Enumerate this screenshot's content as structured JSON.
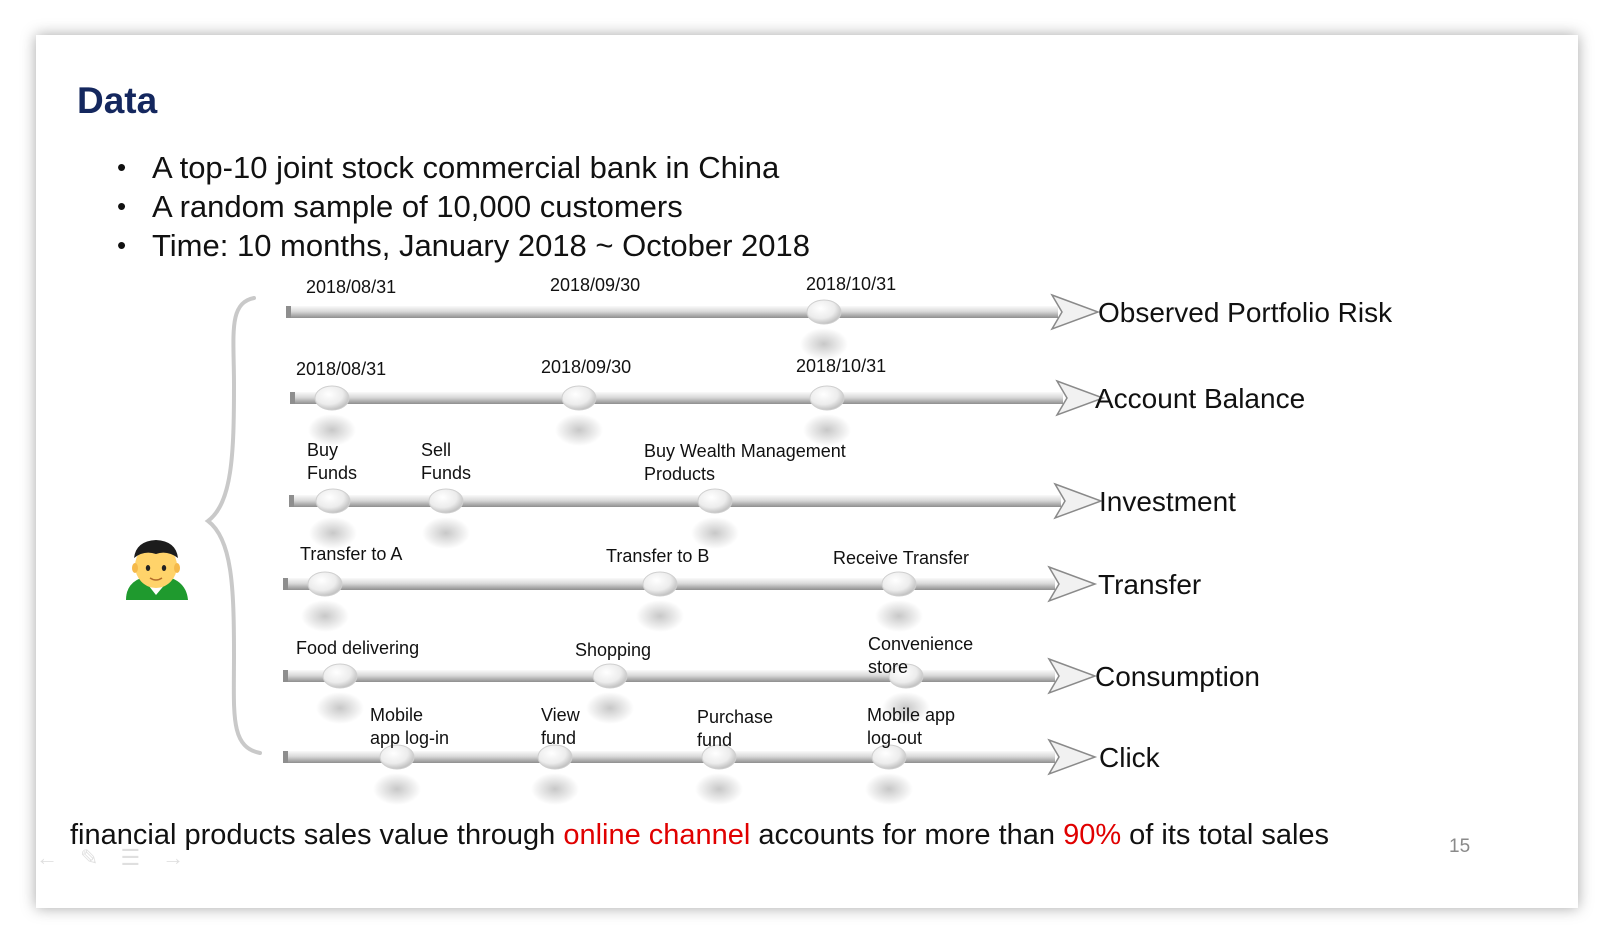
{
  "slide": {
    "title": "Data",
    "bullets": [
      "A top-10 joint stock commercial bank in China",
      "A random sample of 10,000 customers",
      "Time: 10 months, January 2018 ~ October 2018"
    ],
    "footer": {
      "part1": "financial products sales value through ",
      "highlight1": "online channel",
      "part2": " accounts for more than ",
      "highlight2": "90%",
      "part3": " of its total sales"
    },
    "page_number": "15"
  },
  "diagram": {
    "customer_icon": "person-icon",
    "timelines": [
      {
        "label": "Observed Portfolio Risk",
        "events": [
          {
            "text": "2018/08/31"
          },
          {
            "text": "2018/09/30"
          },
          {
            "text": "2018/10/31"
          }
        ]
      },
      {
        "label": "Account Balance",
        "events": [
          {
            "text": "2018/08/31"
          },
          {
            "text": "2018/09/30"
          },
          {
            "text": "2018/10/31"
          }
        ]
      },
      {
        "label": "Investment",
        "events": [
          {
            "text": "Buy\nFunds"
          },
          {
            "text": "Sell\nFunds"
          },
          {
            "text": "Buy Wealth Management\nProducts"
          }
        ]
      },
      {
        "label": "Transfer",
        "events": [
          {
            "text": "Transfer to A"
          },
          {
            "text": "Transfer to B"
          },
          {
            "text": "Receive Transfer"
          }
        ]
      },
      {
        "label": "Consumption",
        "events": [
          {
            "text": "Food delivering"
          },
          {
            "text": "Shopping"
          },
          {
            "text": "Convenience\nstore"
          }
        ]
      },
      {
        "label": "Click",
        "events": [
          {
            "text": "Mobile\napp log-in"
          },
          {
            "text": "View\nfund"
          },
          {
            "text": "Purchase\nfund"
          },
          {
            "text": "Mobile app\nlog-out"
          }
        ]
      }
    ]
  },
  "colors": {
    "title": "#14275e",
    "highlight": "#e00000",
    "axis_light": "#f4f4f4",
    "axis_dark": "#8e8e8e"
  }
}
